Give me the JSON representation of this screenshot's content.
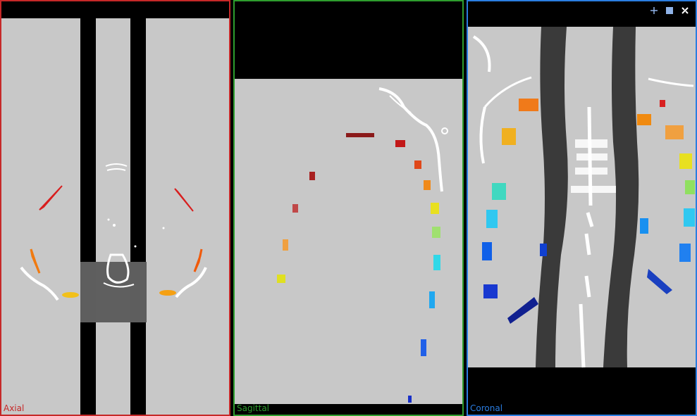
{
  "viewports": {
    "axial": {
      "label": "Axial",
      "color": "#c62828"
    },
    "sagittal": {
      "label": "Sagittal",
      "color": "#2e9e2e"
    },
    "coronal": {
      "label": "Coronal",
      "color": "#2a7de1"
    }
  },
  "toolbar": {
    "icons": [
      "crosshair-icon",
      "maximize-icon",
      "tools-icon"
    ],
    "accent": "#8fb3e8"
  }
}
